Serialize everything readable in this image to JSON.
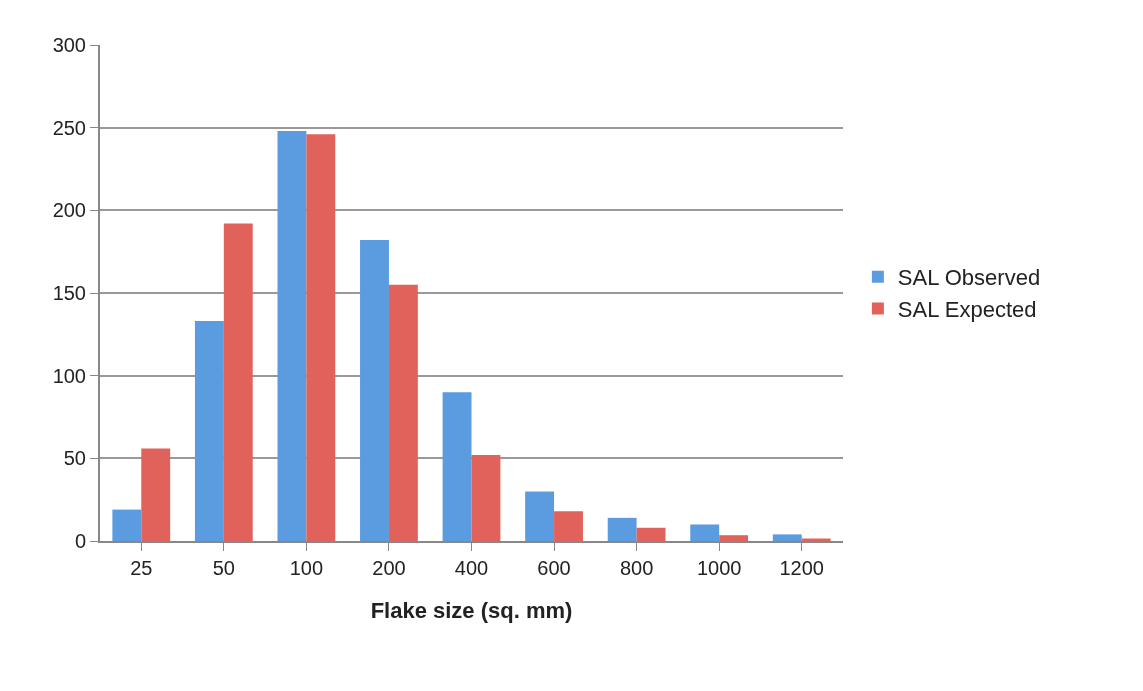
{
  "chart_data": {
    "type": "bar",
    "xlabel": "Flake size (sq. mm)",
    "categories": [
      "25",
      "50",
      "100",
      "200",
      "400",
      "600",
      "800",
      "1000",
      "1200"
    ],
    "series": [
      {
        "name": "SAL Observed",
        "color": "#5b9bdf",
        "values": [
          19,
          133,
          248,
          182,
          90,
          30,
          14,
          10,
          4
        ]
      },
      {
        "name": "SAL Expected",
        "color": "#e0625a",
        "values": [
          56,
          192,
          246,
          155,
          52,
          18,
          8,
          3.5,
          1.5
        ]
      }
    ],
    "ylim": [
      0,
      300
    ],
    "yticks": [
      0,
      50,
      100,
      150,
      200,
      250,
      300
    ],
    "grid": "y",
    "legend": "right"
  }
}
